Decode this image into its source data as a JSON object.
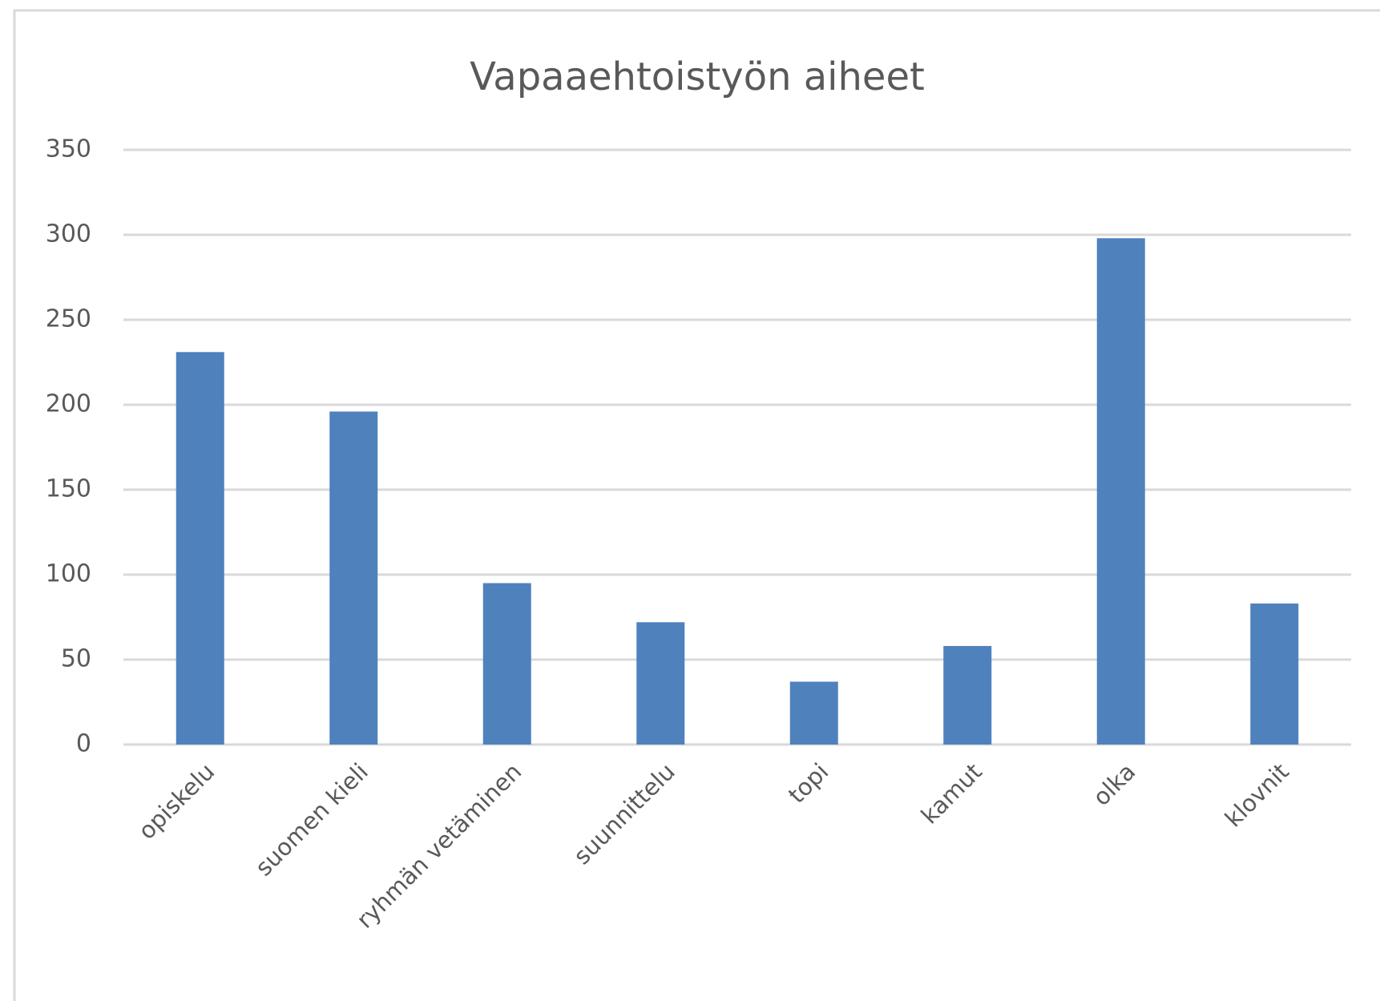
{
  "chart_data": {
    "type": "bar",
    "title": "Vapaaehtoistyön aiheet",
    "categories": [
      "opiskelu",
      "suomen kieli",
      "ryhmän vetäminen",
      "suunnittelu",
      "topi",
      "kamut",
      "olka",
      "klovnit"
    ],
    "values": [
      231,
      196,
      95,
      72,
      37,
      58,
      298,
      83
    ],
    "color": "#4f81bd",
    "ylim": [
      0,
      350
    ],
    "yticks": [
      0,
      50,
      100,
      150,
      200,
      250,
      300,
      350
    ],
    "grid": true
  }
}
